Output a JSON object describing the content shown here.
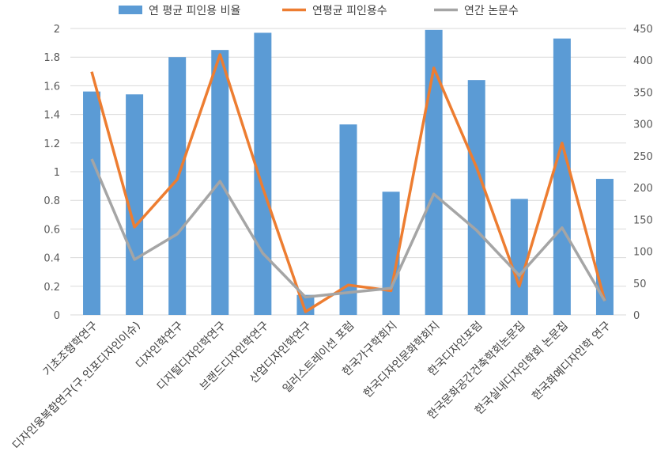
{
  "chart_data": {
    "type": "bar",
    "categories": [
      "기초조형학연구",
      "디자인융복합연구(구.인포디자인이슈)",
      "디자인학연구",
      "디지털디자인학연구",
      "브랜드디자인학연구",
      "산업디자인학연구",
      "일러스트레이션 포럼",
      "한국가구학회지",
      "한국디자인문화학회지",
      "한국디자인포럼",
      "한국문화공간건축학회논문집",
      "한국실내디자인학회 논문집",
      "한국화예디자인학 연구"
    ],
    "series": [
      {
        "name": "연 평균 피인용 비율",
        "type": "bar",
        "axis": "left",
        "color": "#5B9BD5",
        "values": [
          1.56,
          1.54,
          1.8,
          1.85,
          1.97,
          0.14,
          1.33,
          0.86,
          1.99,
          1.64,
          0.81,
          1.93,
          0.95
        ]
      },
      {
        "name": "연평균 피인용수",
        "type": "line",
        "axis": "right",
        "color": "#ED7D31",
        "values": [
          382,
          138,
          213,
          409,
          200,
          5,
          47,
          38,
          388,
          232,
          45,
          270,
          22
        ]
      },
      {
        "name": "연간 논문수",
        "type": "line",
        "axis": "right",
        "color": "#A5A5A5",
        "values": [
          245,
          87,
          127,
          210,
          97,
          28,
          35,
          42,
          190,
          133,
          62,
          137,
          22
        ]
      }
    ],
    "y_left": {
      "min": 0,
      "max": 2,
      "ticks": [
        "0",
        "0.2",
        "0.4",
        "0.6",
        "0.8",
        "1",
        "1.2",
        "1.4",
        "1.6",
        "1.8",
        "2"
      ]
    },
    "y_right": {
      "min": 0,
      "max": 450,
      "ticks": [
        "0",
        "50",
        "100",
        "150",
        "200",
        "250",
        "300",
        "350",
        "400",
        "450"
      ]
    },
    "grid": true,
    "legend_position": "top"
  }
}
